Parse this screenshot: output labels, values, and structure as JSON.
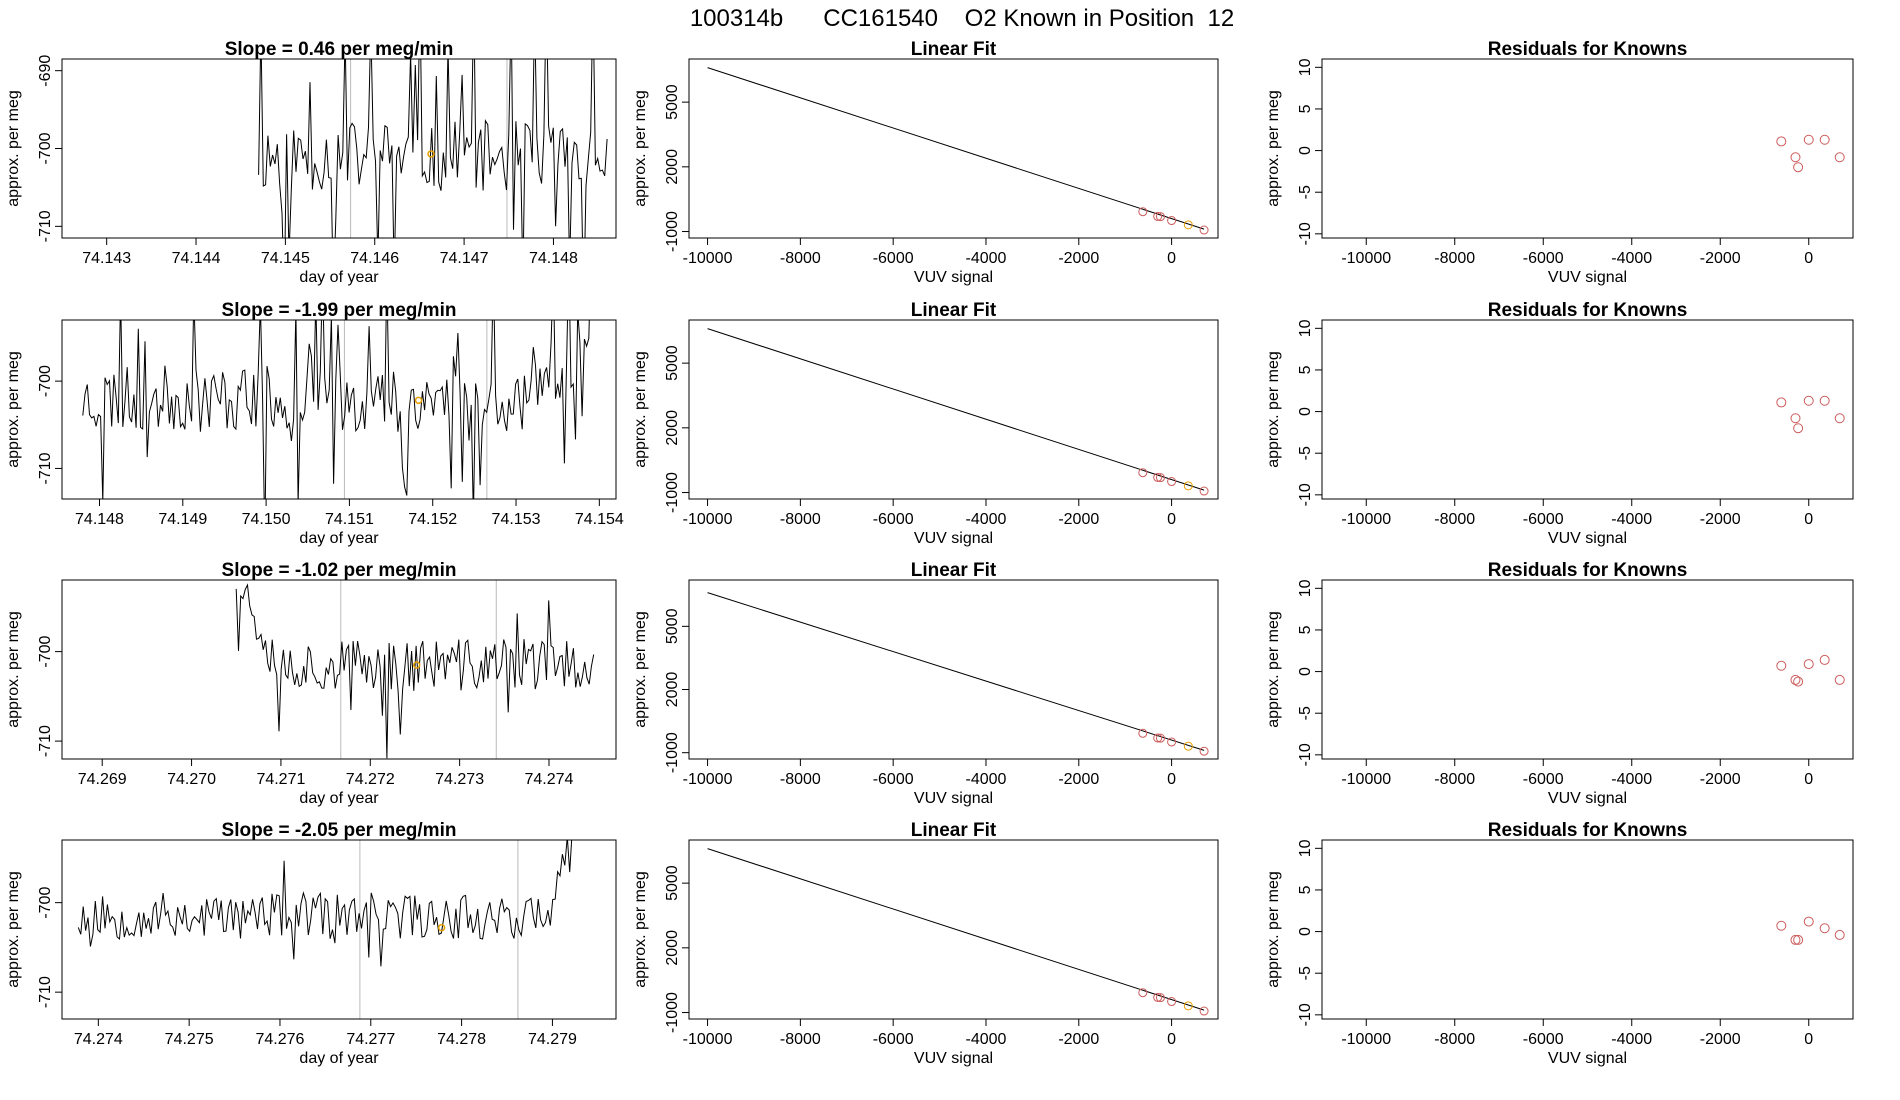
{
  "title": "100314b      CC161540    O2 Known in Position  12",
  "colors": {
    "known_point": "#cd5c5c",
    "highlight": "#e69f00",
    "line": "#000000",
    "marker_line": "#bbbbbb"
  },
  "chart_data": [
    {
      "type": "line",
      "row": 0,
      "col": 0,
      "title": "Slope =  0.46  per meg/min",
      "xlabel": "day of year",
      "ylabel": "approx. per meg",
      "xlim": [
        74.1425,
        74.1487
      ],
      "ylim": [
        -711.5,
        -688.5
      ],
      "xticks": [
        74.143,
        74.144,
        74.145,
        74.146,
        74.147,
        74.148
      ],
      "xtick_labels": [
        "74.143",
        "74.144",
        "74.145",
        "74.146",
        "74.147",
        "74.148"
      ],
      "yticks": [
        -710,
        -700,
        -690
      ],
      "ytick_labels": [
        "-710",
        "-700",
        "-690"
      ],
      "vlines": [
        74.14573,
        74.14748
      ],
      "highlight": {
        "x": 74.14663,
        "y": -700.7
      },
      "seed": 11,
      "x_start": 74.1447,
      "x_end": 74.1486,
      "n": 150,
      "center": -701,
      "noise": 4.6,
      "spike_prob": 0.15,
      "spike_amp": 14
    },
    {
      "type": "scatter-fit",
      "row": 0,
      "col": 1,
      "title": "Linear Fit",
      "xlabel": "VUV signal",
      "ylabel": "approx. per meg",
      "xlim": [
        -10400,
        1000
      ],
      "ylim": [
        -1300,
        7000
      ],
      "xticks": [
        -10000,
        -8000,
        -6000,
        -4000,
        -2000,
        0
      ],
      "xtick_labels": [
        "-10000",
        "-8000",
        "-6000",
        "-4000",
        "-2000",
        "0"
      ],
      "yticks": [
        -1000,
        2000,
        5000
      ],
      "ytick_labels": [
        "-1000",
        "2000",
        "5000"
      ],
      "fit": {
        "x0": -10000,
        "y0": 6600,
        "x1": 700,
        "y1": -890
      },
      "points": [
        [
          -620,
          -80
        ],
        [
          -300,
          -300
        ],
        [
          -240,
          -310
        ],
        [
          0,
          -490
        ],
        [
          360,
          -690
        ],
        [
          700,
          -930
        ]
      ],
      "highlight_index": 4
    },
    {
      "type": "scatter",
      "row": 0,
      "col": 2,
      "title": "Residuals for Knowns",
      "xlabel": "VUV signal",
      "ylabel": "approx. per meg",
      "xlim": [
        -11000,
        1000
      ],
      "ylim": [
        -10.5,
        11
      ],
      "xticks": [
        -10000,
        -8000,
        -6000,
        -4000,
        -2000,
        0
      ],
      "xtick_labels": [
        "-10000",
        "-8000",
        "-6000",
        "-4000",
        "-2000",
        "0"
      ],
      "yticks": [
        -10,
        -5,
        0,
        5,
        10
      ],
      "ytick_labels": [
        "-10",
        "-5",
        "0",
        "5",
        "10"
      ],
      "points": [
        [
          -620,
          1.1
        ],
        [
          -300,
          -0.8
        ],
        [
          -240,
          -2.0
        ],
        [
          0,
          1.3
        ],
        [
          360,
          1.3
        ],
        [
          700,
          -0.8
        ]
      ]
    },
    {
      "type": "line",
      "row": 1,
      "col": 0,
      "title": "Slope =  -1.99  per meg/min",
      "xlabel": "day of year",
      "ylabel": "approx. per meg",
      "xlim": [
        74.14755,
        74.1542
      ],
      "ylim": [
        -713.5,
        -693
      ],
      "xticks": [
        74.148,
        74.149,
        74.15,
        74.151,
        74.152,
        74.153,
        74.154
      ],
      "xtick_labels": [
        "74.148",
        "74.149",
        "74.150",
        "74.151",
        "74.152",
        "74.153",
        "74.154"
      ],
      "yticks": [
        -710,
        -700
      ],
      "ytick_labels": [
        "-710",
        "-700"
      ],
      "vlines": [
        74.15094,
        74.15265
      ],
      "highlight": {
        "x": 74.15183,
        "y": -702.2
      },
      "seed": 23,
      "x_start": 74.1478,
      "x_end": 74.1539,
      "n": 230,
      "center": -702,
      "noise": 3.8,
      "spike_prob": 0.12,
      "spike_amp": 10,
      "end_rise": 12
    },
    {
      "type": "scatter-fit",
      "row": 1,
      "col": 1,
      "title": "Linear Fit",
      "xlabel": "VUV signal",
      "ylabel": "approx. per meg",
      "xlim": [
        -10400,
        1000
      ],
      "ylim": [
        -1300,
        7000
      ],
      "xticks": [
        -10000,
        -8000,
        -6000,
        -4000,
        -2000,
        0
      ],
      "xtick_labels": [
        "-10000",
        "-8000",
        "-6000",
        "-4000",
        "-2000",
        "0"
      ],
      "yticks": [
        -1000,
        2000,
        5000
      ],
      "ytick_labels": [
        "-1000",
        "2000",
        "5000"
      ],
      "fit": {
        "x0": -10000,
        "y0": 6600,
        "x1": 700,
        "y1": -890
      },
      "points": [
        [
          -620,
          -80
        ],
        [
          -300,
          -300
        ],
        [
          -240,
          -310
        ],
        [
          0,
          -490
        ],
        [
          360,
          -690
        ],
        [
          700,
          -930
        ]
      ],
      "highlight_index": 4
    },
    {
      "type": "scatter",
      "row": 1,
      "col": 2,
      "title": "Residuals for Knowns",
      "xlabel": "VUV signal",
      "ylabel": "approx. per meg",
      "xlim": [
        -11000,
        1000
      ],
      "ylim": [
        -10.5,
        11
      ],
      "xticks": [
        -10000,
        -8000,
        -6000,
        -4000,
        -2000,
        0
      ],
      "xtick_labels": [
        "-10000",
        "-8000",
        "-6000",
        "-4000",
        "-2000",
        "0"
      ],
      "yticks": [
        -10,
        -5,
        0,
        5,
        10
      ],
      "ytick_labels": [
        "-10",
        "-5",
        "0",
        "5",
        "10"
      ],
      "points": [
        [
          -620,
          1.1
        ],
        [
          -300,
          -0.8
        ],
        [
          -240,
          -2.0
        ],
        [
          0,
          1.3
        ],
        [
          360,
          1.3
        ],
        [
          700,
          -0.8
        ]
      ]
    },
    {
      "type": "line",
      "row": 2,
      "col": 0,
      "title": "Slope =  -1.02  per meg/min",
      "xlabel": "day of year",
      "ylabel": "approx. per meg",
      "xlim": [
        74.26855,
        74.27475
      ],
      "ylim": [
        -712,
        -692
      ],
      "xticks": [
        74.269,
        74.27,
        74.271,
        74.272,
        74.273,
        74.274
      ],
      "xtick_labels": [
        "74.269",
        "74.270",
        "74.271",
        "74.272",
        "74.273",
        "74.274"
      ],
      "yticks": [
        -710,
        -700
      ],
      "ytick_labels": [
        "-710",
        "-700"
      ],
      "vlines": [
        74.27167,
        74.27341
      ],
      "highlight": {
        "x": 74.27252,
        "y": -701.5
      },
      "seed": 37,
      "x_start": 74.2705,
      "x_end": 74.2745,
      "n": 160,
      "center": -701.5,
      "noise": 3.0,
      "spike_prob": 0.05,
      "spike_amp": 7,
      "start_high": 10
    },
    {
      "type": "scatter-fit",
      "row": 2,
      "col": 1,
      "title": "Linear Fit",
      "xlabel": "VUV signal",
      "ylabel": "approx. per meg",
      "xlim": [
        -10400,
        1000
      ],
      "ylim": [
        -1300,
        7200
      ],
      "xticks": [
        -10000,
        -8000,
        -6000,
        -4000,
        -2000,
        0
      ],
      "xtick_labels": [
        "-10000",
        "-8000",
        "-6000",
        "-4000",
        "-2000",
        "0"
      ],
      "yticks": [
        -1000,
        2000,
        5000
      ],
      "ytick_labels": [
        "-1000",
        "2000",
        "5000"
      ],
      "fit": {
        "x0": -10000,
        "y0": 6600,
        "x1": 700,
        "y1": -890
      },
      "points": [
        [
          -620,
          -80
        ],
        [
          -300,
          -300
        ],
        [
          -240,
          -310
        ],
        [
          0,
          -490
        ],
        [
          360,
          -690
        ],
        [
          700,
          -930
        ]
      ],
      "highlight_index": 4
    },
    {
      "type": "scatter",
      "row": 2,
      "col": 2,
      "title": "Residuals for Knowns",
      "xlabel": "VUV signal",
      "ylabel": "approx. per meg",
      "xlim": [
        -11000,
        1000
      ],
      "ylim": [
        -10.5,
        11
      ],
      "xticks": [
        -10000,
        -8000,
        -6000,
        -4000,
        -2000,
        0
      ],
      "xtick_labels": [
        "-10000",
        "-8000",
        "-6000",
        "-4000",
        "-2000",
        "0"
      ],
      "yticks": [
        -10,
        -5,
        0,
        5,
        10
      ],
      "ytick_labels": [
        "-10",
        "-5",
        "0",
        "5",
        "10"
      ],
      "points": [
        [
          -620,
          0.7
        ],
        [
          -300,
          -1.0
        ],
        [
          -240,
          -1.2
        ],
        [
          0,
          0.9
        ],
        [
          360,
          1.4
        ],
        [
          700,
          -1.0
        ]
      ]
    },
    {
      "type": "line",
      "row": 3,
      "col": 0,
      "title": "Slope =  -2.05  per meg/min",
      "xlabel": "day of year",
      "ylabel": "approx. per meg",
      "xlim": [
        74.2736,
        74.2797
      ],
      "ylim": [
        -713,
        -693
      ],
      "xticks": [
        74.274,
        74.275,
        74.276,
        74.277,
        74.278,
        74.279
      ],
      "xtick_labels": [
        "74.274",
        "74.275",
        "74.276",
        "74.277",
        "74.278",
        "74.279"
      ],
      "yticks": [
        -710,
        -700
      ],
      "ytick_labels": [
        "-710",
        "-700"
      ],
      "vlines": [
        74.27688,
        74.27862
      ],
      "highlight": {
        "x": 74.27778,
        "y": -702.8
      },
      "seed": 53,
      "x_start": 74.27378,
      "x_end": 74.27935,
      "n": 210,
      "center": -701.5,
      "noise": 2.6,
      "spike_prob": 0.04,
      "spike_amp": 6,
      "end_rise": 14
    },
    {
      "type": "scatter-fit",
      "row": 3,
      "col": 1,
      "title": "Linear Fit",
      "xlabel": "VUV signal",
      "ylabel": "approx. per meg",
      "xlim": [
        -10400,
        1000
      ],
      "ylim": [
        -1300,
        7000
      ],
      "xticks": [
        -10000,
        -8000,
        -6000,
        -4000,
        -2000,
        0
      ],
      "xtick_labels": [
        "-10000",
        "-8000",
        "-6000",
        "-4000",
        "-2000",
        "0"
      ],
      "yticks": [
        -1000,
        2000,
        5000
      ],
      "ytick_labels": [
        "-1000",
        "2000",
        "5000"
      ],
      "fit": {
        "x0": -10000,
        "y0": 6600,
        "x1": 700,
        "y1": -890
      },
      "points": [
        [
          -620,
          -80
        ],
        [
          -300,
          -300
        ],
        [
          -240,
          -310
        ],
        [
          0,
          -490
        ],
        [
          360,
          -690
        ],
        [
          700,
          -930
        ]
      ],
      "highlight_index": 4
    },
    {
      "type": "scatter",
      "row": 3,
      "col": 2,
      "title": "Residuals for Knowns",
      "xlabel": "VUV signal",
      "ylabel": "approx. per meg",
      "xlim": [
        -11000,
        1000
      ],
      "ylim": [
        -10.5,
        11
      ],
      "xticks": [
        -10000,
        -8000,
        -6000,
        -4000,
        -2000,
        0
      ],
      "xtick_labels": [
        "-10000",
        "-8000",
        "-6000",
        "-4000",
        "-2000",
        "0"
      ],
      "yticks": [
        -10,
        -5,
        0,
        5,
        10
      ],
      "ytick_labels": [
        "-10",
        "-5",
        "0",
        "5",
        "10"
      ],
      "points": [
        [
          -620,
          0.7
        ],
        [
          -300,
          -1.0
        ],
        [
          -240,
          -1.0
        ],
        [
          0,
          1.2
        ],
        [
          360,
          0.4
        ],
        [
          700,
          -0.4
        ]
      ]
    }
  ]
}
